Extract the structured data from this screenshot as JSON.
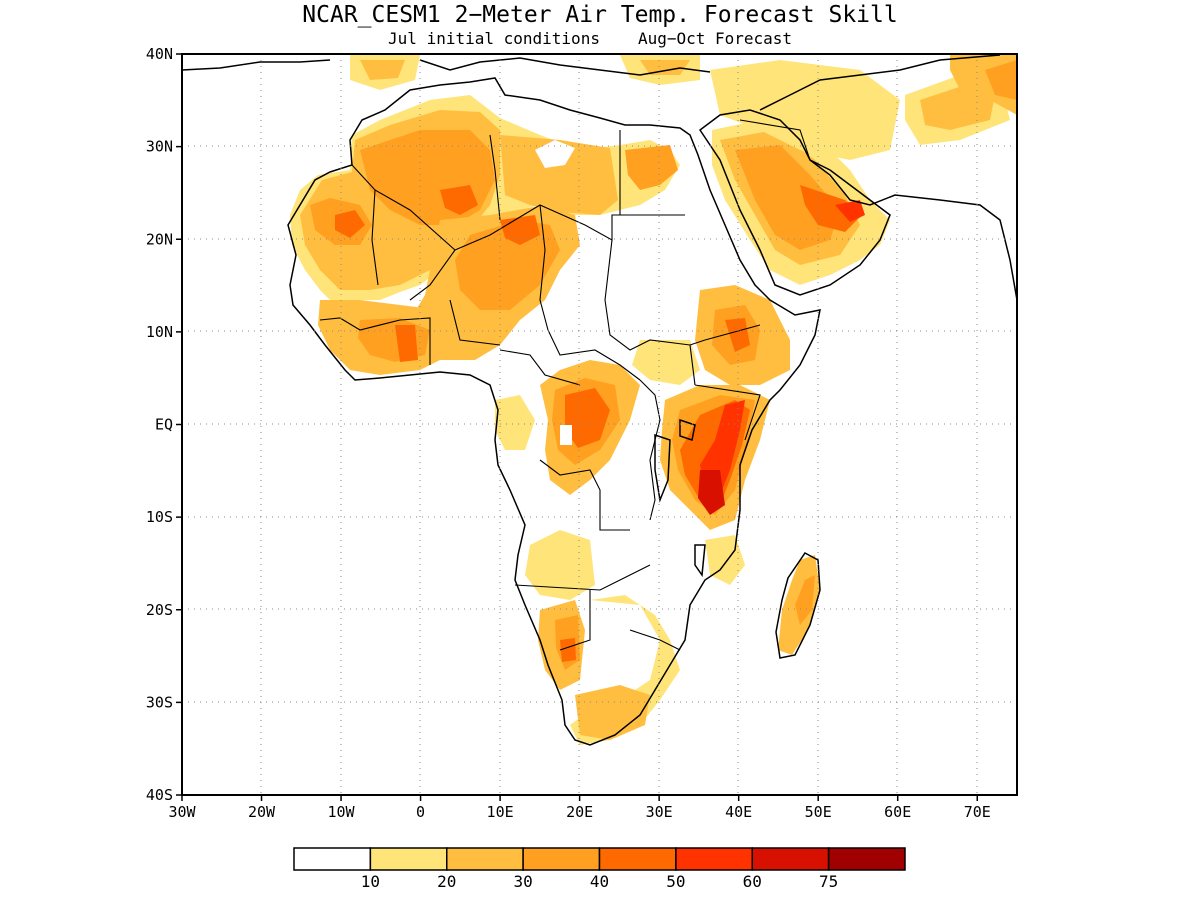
{
  "title": "NCAR_CESM1 2−Meter Air Temp. Forecast Skill",
  "subtitle_left": "Jul initial conditions",
  "subtitle_right": "Aug−Oct Forecast",
  "map": {
    "lon_range": [
      -30,
      75
    ],
    "lat_range": [
      -40,
      40
    ],
    "lat_ticks": [
      {
        "value": 40,
        "label": "40N"
      },
      {
        "value": 30,
        "label": "30N"
      },
      {
        "value": 20,
        "label": "20N"
      },
      {
        "value": 10,
        "label": "10N"
      },
      {
        "value": 0,
        "label": "EQ"
      },
      {
        "value": -10,
        "label": "10S"
      },
      {
        "value": -20,
        "label": "20S"
      },
      {
        "value": -30,
        "label": "30S"
      },
      {
        "value": -40,
        "label": "40S"
      }
    ],
    "lon_ticks": [
      {
        "value": -30,
        "label": "30W"
      },
      {
        "value": -20,
        "label": "20W"
      },
      {
        "value": -10,
        "label": "10W"
      },
      {
        "value": 0,
        "label": "0"
      },
      {
        "value": 10,
        "label": "10E"
      },
      {
        "value": 20,
        "label": "20E"
      },
      {
        "value": 30,
        "label": "30E"
      },
      {
        "value": 40,
        "label": "40E"
      },
      {
        "value": 50,
        "label": "50E"
      },
      {
        "value": 60,
        "label": "60E"
      },
      {
        "value": 70,
        "label": "70E"
      }
    ],
    "grid_lines": "dotted"
  },
  "colorbar": {
    "colors": [
      "#ffffff",
      "#ffe47a",
      "#ffbe40",
      "#ffa020",
      "#ff6a00",
      "#ff3200",
      "#d81000",
      "#a00000"
    ],
    "labels": [
      "10",
      "20",
      "30",
      "40",
      "50",
      "60",
      "75"
    ]
  }
}
